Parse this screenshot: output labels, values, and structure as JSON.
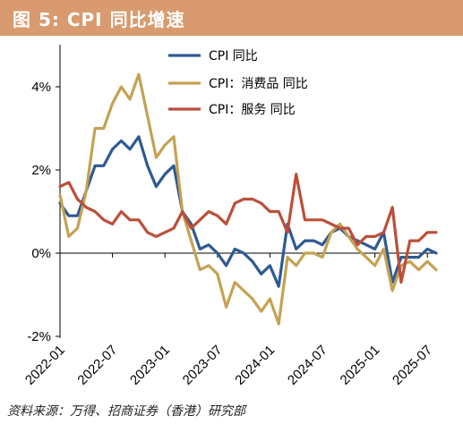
{
  "header": {
    "title": "图 5:  CPI 同比增速"
  },
  "footer": {
    "source": "资料来源：万得、招商证券（香港）研究部"
  },
  "colors": {
    "header_bg": "#d89a6e",
    "cpi": "#2e5a92",
    "consumer": "#c4a253",
    "services": "#bb4f3a"
  },
  "chart_data": {
    "type": "line",
    "title": "",
    "xlabel": "",
    "ylabel": "",
    "x_tick_labels": [
      "2022-01",
      "2022-07",
      "2023-01",
      "2023-07",
      "2024-01",
      "2024-07",
      "2025-01",
      "2025-07"
    ],
    "x_tick_index": [
      0,
      6,
      12,
      18,
      24,
      30,
      36,
      42
    ],
    "y_tick_labels": [
      "-2%",
      "0%",
      "2%",
      "4%"
    ],
    "y_tick_values": [
      -2,
      0,
      2,
      4
    ],
    "ylim": [
      -2,
      5
    ],
    "x_range": [
      "2022-01",
      "2025-07"
    ],
    "grid": false,
    "legend_position": "top-center",
    "series": [
      {
        "name": "CPI 同比",
        "color": "#2e5a92",
        "values": [
          1.2,
          0.9,
          0.9,
          1.5,
          2.1,
          2.1,
          2.5,
          2.7,
          2.5,
          2.8,
          2.1,
          1.6,
          1.9,
          2.1,
          1.0,
          0.7,
          0.1,
          0.2,
          0.0,
          -0.3,
          0.1,
          0.0,
          -0.2,
          -0.5,
          -0.3,
          -0.8,
          0.7,
          0.1,
          0.3,
          0.3,
          0.2,
          0.5,
          0.6,
          0.4,
          0.3,
          0.2,
          0.1,
          0.5,
          -0.7,
          -0.1,
          -0.1,
          -0.1,
          0.1,
          0.0
        ]
      },
      {
        "name": "CPI：消费品 同比",
        "color": "#c4a253",
        "values": [
          1.4,
          0.4,
          0.6,
          1.5,
          3.0,
          3.0,
          3.6,
          4.0,
          3.7,
          4.3,
          3.3,
          2.3,
          2.6,
          2.8,
          1.0,
          0.3,
          -0.4,
          -0.3,
          -0.5,
          -1.3,
          -0.7,
          -0.9,
          -1.1,
          -1.4,
          -1.1,
          -1.7,
          -0.1,
          -0.3,
          0.0,
          0.0,
          -0.1,
          0.5,
          0.7,
          0.4,
          0.1,
          -0.1,
          -0.3,
          0.1,
          -0.9,
          -0.3,
          -0.2,
          -0.4,
          -0.2,
          -0.4
        ]
      },
      {
        "name": "CPI：服务 同比",
        "color": "#bb4f3a",
        "values": [
          1.6,
          1.7,
          1.3,
          1.1,
          1.0,
          0.8,
          0.7,
          1.0,
          0.8,
          0.8,
          0.5,
          0.4,
          0.5,
          0.6,
          1.0,
          0.6,
          0.8,
          1.0,
          0.9,
          0.7,
          1.2,
          1.3,
          1.3,
          1.2,
          1.0,
          1.0,
          0.5,
          1.9,
          0.8,
          0.8,
          0.8,
          0.7,
          0.6,
          0.6,
          0.2,
          0.4,
          0.4,
          0.5,
          1.1,
          -0.7,
          0.3,
          0.3,
          0.5,
          0.5
        ]
      }
    ]
  }
}
